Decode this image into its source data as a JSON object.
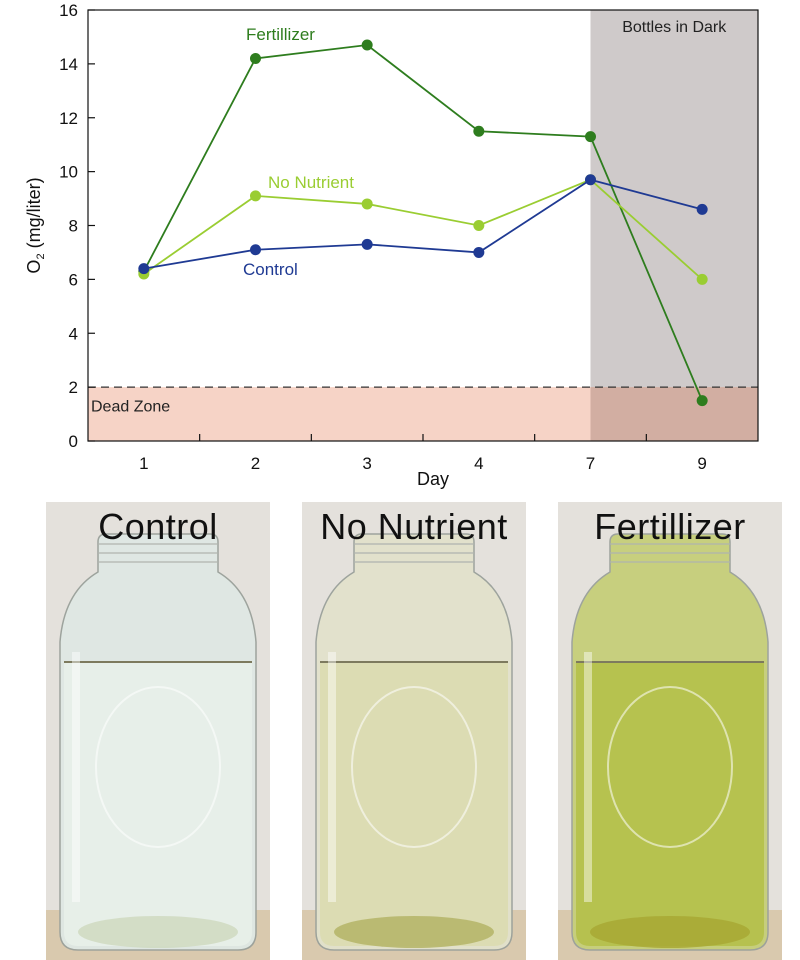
{
  "chart_data": {
    "type": "line",
    "x_categories": [
      "1",
      "2",
      "3",
      "4",
      "7",
      "9"
    ],
    "xlabel": "Day",
    "ylabel_main": "O",
    "ylabel_sub": "2",
    "ylabel_rest": " (mg/liter)",
    "ylim": [
      0,
      16
    ],
    "yticks": [
      0,
      2,
      4,
      6,
      8,
      10,
      12,
      14,
      16
    ],
    "grid": false,
    "series": [
      {
        "name": "Fertillizer",
        "color": "#2e7d1e",
        "values": [
          6.3,
          14.2,
          14.7,
          11.5,
          11.3,
          1.5
        ]
      },
      {
        "name": "No Nutrient",
        "color": "#9acd32",
        "values": [
          6.2,
          9.1,
          8.8,
          8.0,
          9.7,
          6.0
        ]
      },
      {
        "name": "Control",
        "color": "#1f3a93",
        "values": [
          6.4,
          7.1,
          7.3,
          7.0,
          9.7,
          8.6
        ]
      }
    ],
    "regions": [
      {
        "label": "Dead Zone",
        "y_from": 0,
        "y_to": 2,
        "color": "#f6d3c6"
      },
      {
        "label": "Bottles in Dark",
        "x_from": 4.5,
        "x_to": 5.5,
        "color": "#cfcaca"
      }
    ],
    "threshold": {
      "y": 2,
      "style": "dashed"
    }
  },
  "photos": [
    {
      "label": "Control",
      "tint": "#dfe8e4",
      "water": "#e8efe9",
      "sediment": "#cfd9c0"
    },
    {
      "label": "No Nutrient",
      "tint": "#e2e2cc",
      "water": "#dcdcb0",
      "sediment": "#b4b466"
    },
    {
      "label": "Fertillizer",
      "tint": "#c6cf7a",
      "water": "#b4c04a",
      "sediment": "#a8a834"
    }
  ]
}
